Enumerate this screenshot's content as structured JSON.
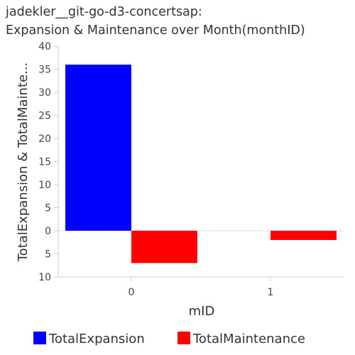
{
  "title_lines": [
    "jadekler__git-go-d3-concertsap:",
    "Expansion & Maintenance over Month(monthID)"
  ],
  "chart_data": {
    "type": "bar",
    "title": "jadekler__git-go-d3-concertsap: Expansion & Maintenance over Month(monthID)",
    "xlabel": "mID",
    "ylabel": "TotalExpansion & TotalMainte...",
    "categories": [
      "0",
      "1"
    ],
    "series": [
      {
        "name": "TotalExpansion",
        "color": "#0000ff",
        "values": [
          36,
          0
        ]
      },
      {
        "name": "TotalMaintenance",
        "color": "#ff0000",
        "values": [
          -7,
          -2
        ]
      }
    ],
    "ylim": [
      -10,
      40
    ],
    "yticks": [
      {
        "value": 40,
        "label": "40"
      },
      {
        "value": 35,
        "label": "35"
      },
      {
        "value": 30,
        "label": "30"
      },
      {
        "value": 25,
        "label": "25"
      },
      {
        "value": 20,
        "label": "20"
      },
      {
        "value": 15,
        "label": "15"
      },
      {
        "value": 10,
        "label": "10"
      },
      {
        "value": 5,
        "label": "5"
      },
      {
        "value": 0,
        "label": "0"
      },
      {
        "value": -5,
        "label": "5"
      },
      {
        "value": -10,
        "label": "10"
      }
    ],
    "grid": false,
    "legend": "bottom"
  }
}
